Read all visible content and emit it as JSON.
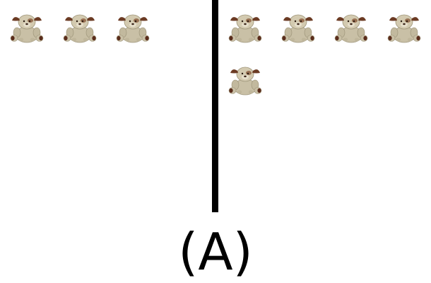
{
  "figure": {
    "label": "(A)",
    "left_group": {
      "item_icon": "stuffed-puppy-toy-icon",
      "count": 3
    },
    "right_group": {
      "item_icon": "stuffed-puppy-toy-icon",
      "count": 5
    },
    "colors": {
      "background": "#ffffff",
      "divider": "#000000",
      "toy_body": "#c9c0a6",
      "toy_ears": "#6b3b24",
      "toy_paws": "#5a2d1c"
    }
  }
}
